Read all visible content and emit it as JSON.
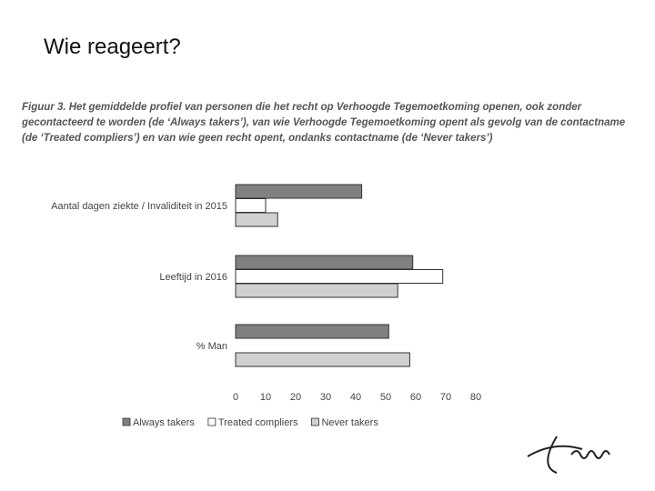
{
  "slide_title": "Wie reageert?",
  "caption": "Figuur 3. Het gemiddelde profiel van personen die het recht op Verhoogde Tegemoetkoming openen, ook zonder gecontacteerd te worden (de ‘Always takers’), van wie Verhoogde Tegemoetkoming opent als gevolg van de contactname (de ‘Treated compliers’) en van wie geen recht opent, ondanks contactname (de ‘Never takers’)",
  "chart_data": {
    "type": "hbar",
    "categories": [
      "Aantal dagen ziekte / Invaliditeit in 2015",
      "Leeftijd in 2016",
      "% Man"
    ],
    "series": [
      {
        "name": "Always takers",
        "color": "#808080",
        "values": [
          42,
          59,
          51
        ]
      },
      {
        "name": "Treated compliers",
        "color": "#ffffff",
        "values": [
          10,
          69,
          null
        ]
      },
      {
        "name": "Never takers",
        "color": "#d0d0d0",
        "values": [
          14,
          54,
          58
        ]
      }
    ],
    "xlim": [
      0,
      80
    ],
    "xticks": [
      0,
      10,
      20,
      30,
      40,
      50,
      60,
      70,
      80
    ],
    "grid": false,
    "legend": "bottom"
  }
}
